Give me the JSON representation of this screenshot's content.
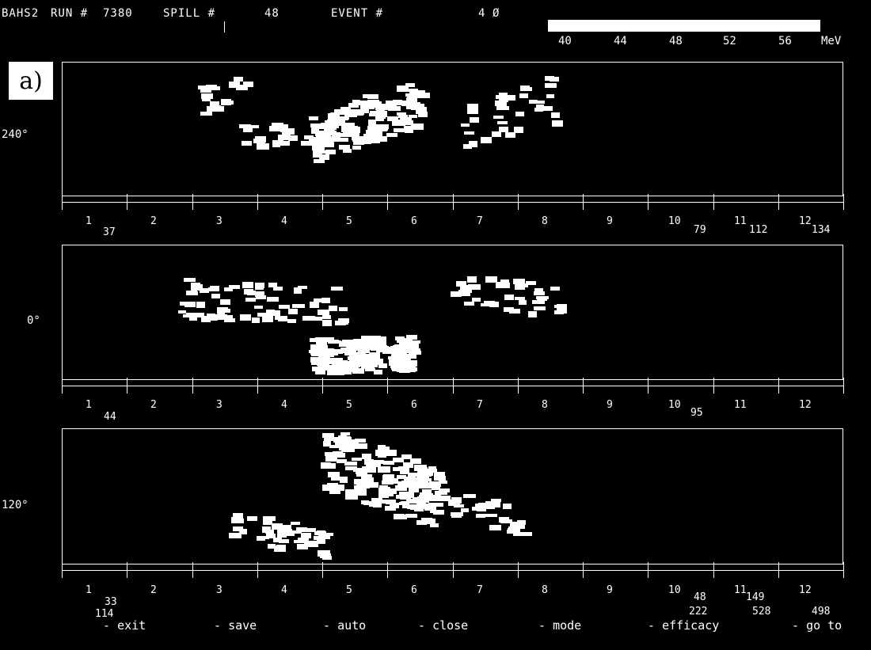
{
  "header": {
    "title": "BAHS2",
    "run_label": "RUN #",
    "run": "7380",
    "spill_label": "SPILL #",
    "spill": "48",
    "event_label": "EVENT #",
    "event": "4",
    "cursor_mark": "Ø"
  },
  "energy_scale": {
    "ticks": [
      "40",
      "44",
      "48",
      "52",
      "56"
    ],
    "unit": "MeV"
  },
  "panel_label": "a)",
  "panels": [
    {
      "angle": "240°",
      "modules": [
        "1",
        "2",
        "3",
        "4",
        "5",
        "6",
        "7",
        "8",
        "9",
        "10",
        "11",
        "12"
      ],
      "counts": [
        "37",
        "79",
        "112",
        "134"
      ]
    },
    {
      "angle": "0°",
      "modules": [
        "1",
        "2",
        "3",
        "4",
        "5",
        "6",
        "7",
        "8",
        "9",
        "10",
        "11",
        "12"
      ],
      "counts": [
        "44",
        "95"
      ]
    },
    {
      "angle": "120°",
      "modules": [
        "1",
        "2",
        "3",
        "4",
        "5",
        "6",
        "7",
        "8",
        "9",
        "10",
        "11",
        "12"
      ],
      "counts": [
        "33",
        "48",
        "149",
        "114",
        "222",
        "528",
        "498"
      ]
    }
  ],
  "menu": [
    {
      "key": "-",
      "label": "exit"
    },
    {
      "key": "-",
      "label": "save"
    },
    {
      "key": "-",
      "label": "auto"
    },
    {
      "key": "-",
      "label": "close"
    },
    {
      "key": "-",
      "label": "mode"
    },
    {
      "key": "-",
      "label": "efficacy"
    },
    {
      "key": "-",
      "label": "go to"
    }
  ]
}
